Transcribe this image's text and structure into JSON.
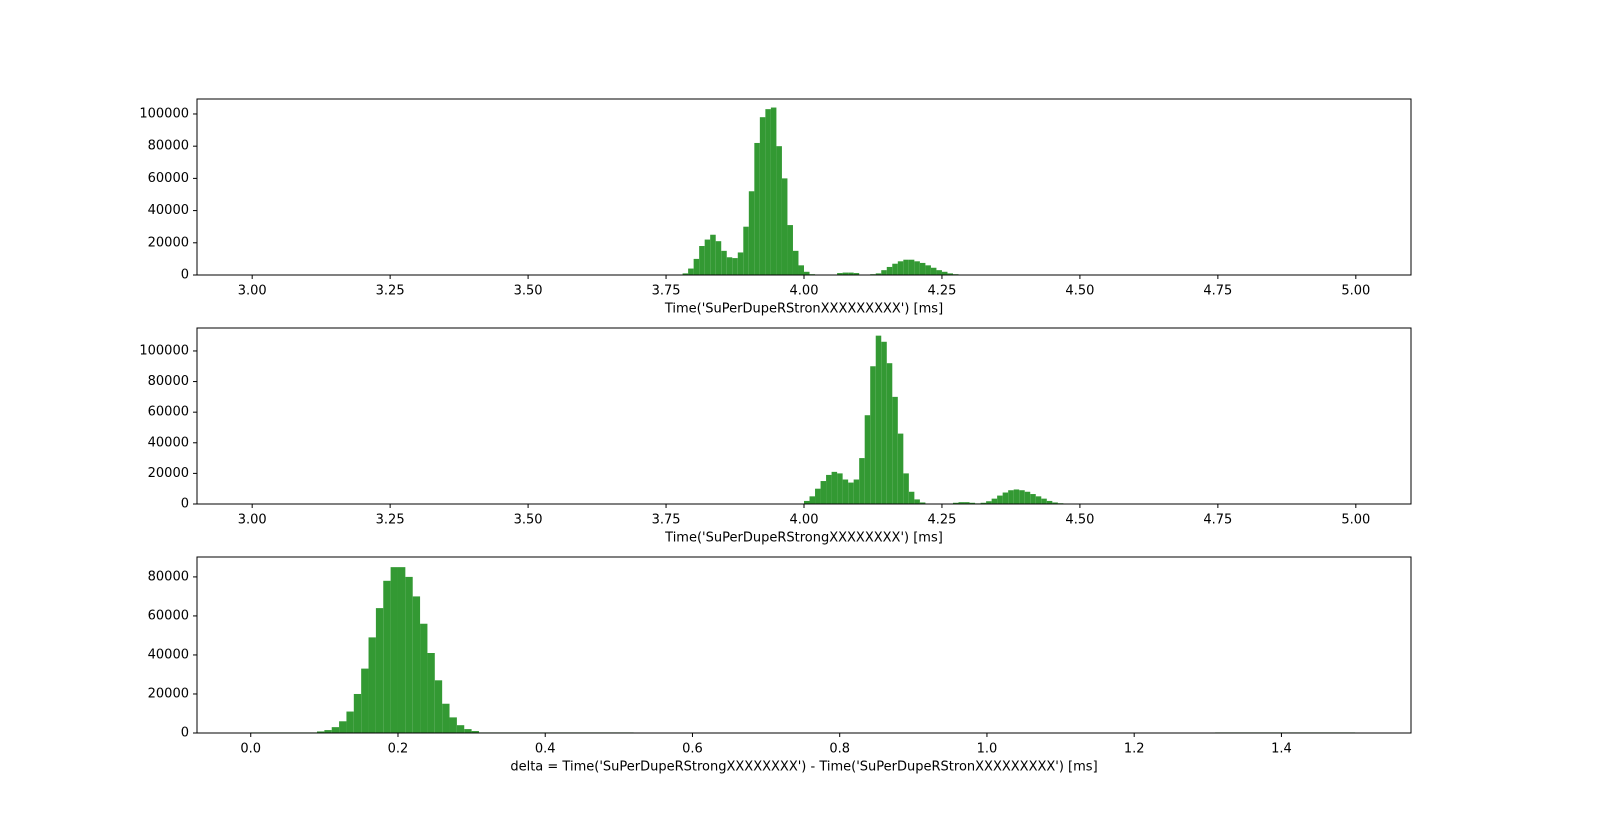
{
  "chart_data": [
    {
      "type": "histogram",
      "color": "#339933",
      "x_label": "Time('SuPerDupeRStronXXXXXXXXX') [ms]",
      "bins": [
        3.78,
        3.79,
        3.8,
        3.81,
        3.82,
        3.83,
        3.84,
        3.85,
        3.86,
        3.87,
        3.88,
        3.89,
        3.9,
        3.91,
        3.92,
        3.93,
        3.94,
        3.95,
        3.96,
        3.97,
        3.98,
        3.99,
        4.0,
        4.01,
        4.02,
        4.03,
        4.04,
        4.05,
        4.06,
        4.07,
        4.08,
        4.09,
        4.1,
        4.11,
        4.12,
        4.13,
        4.14,
        4.15,
        4.16,
        4.17,
        4.18,
        4.19,
        4.2,
        4.21,
        4.22,
        4.23,
        4.24,
        4.25,
        4.26,
        4.27,
        4.28,
        4.29,
        4.3
      ],
      "values": [
        1000,
        4000,
        10000,
        18000,
        22000,
        25000,
        21000,
        15000,
        11000,
        10500,
        14000,
        30000,
        52000,
        82000,
        98000,
        103000,
        104000,
        80000,
        60000,
        31000,
        15000,
        6000,
        2000,
        500,
        200,
        100,
        200,
        300,
        1200,
        1500,
        1500,
        1200,
        300,
        200,
        500,
        1000,
        3000,
        5000,
        7000,
        8500,
        9500,
        9500,
        8500,
        7500,
        6000,
        4500,
        3000,
        2000,
        1000,
        500,
        200,
        100
      ],
      "xlim": [
        2.9,
        5.1
      ],
      "ylim": [
        0,
        109300
      ],
      "xticks": [
        {
          "value": 3,
          "label": "3.00"
        },
        {
          "value": 3.25,
          "label": "3.25"
        },
        {
          "value": 3.5,
          "label": "3.50"
        },
        {
          "value": 3.75,
          "label": "3.75"
        },
        {
          "value": 4,
          "label": "4.00"
        },
        {
          "value": 4.25,
          "label": "4.25"
        },
        {
          "value": 4.5,
          "label": "4.50"
        },
        {
          "value": 4.75,
          "label": "4.75"
        },
        {
          "value": 5,
          "label": "5.00"
        }
      ],
      "yticks": [
        0,
        20000,
        40000,
        60000,
        80000,
        100000
      ]
    },
    {
      "type": "histogram",
      "color": "#339933",
      "x_label": "Time('SuPerDupeRStrongXXXXXXXX') [ms]",
      "bins": [
        4.0,
        4.01,
        4.02,
        4.03,
        4.04,
        4.05,
        4.06,
        4.07,
        4.08,
        4.09,
        4.1,
        4.11,
        4.12,
        4.13,
        4.14,
        4.15,
        4.16,
        4.17,
        4.18,
        4.19,
        4.2,
        4.21,
        4.22,
        4.23,
        4.24,
        4.25,
        4.26,
        4.27,
        4.28,
        4.29,
        4.3,
        4.31,
        4.32,
        4.33,
        4.34,
        4.35,
        4.36,
        4.37,
        4.38,
        4.39,
        4.4,
        4.41,
        4.42,
        4.43,
        4.44,
        4.45,
        4.46,
        4.47,
        4.48,
        4.49,
        4.5
      ],
      "values": [
        2000,
        5000,
        10000,
        15000,
        19000,
        21000,
        20000,
        16000,
        14000,
        16000,
        30000,
        58000,
        90000,
        110000,
        106000,
        92000,
        70000,
        46000,
        20000,
        8000,
        3000,
        1000,
        300,
        100,
        100,
        100,
        100,
        800,
        1200,
        1200,
        800,
        400,
        800,
        1800,
        3500,
        5500,
        7500,
        9000,
        9500,
        9000,
        8000,
        6500,
        5000,
        3500,
        2000,
        1000,
        500,
        200,
        100,
        50
      ],
      "xlim": [
        2.9,
        5.1
      ],
      "ylim": [
        0,
        115000
      ],
      "xticks": [
        {
          "value": 3,
          "label": "3.00"
        },
        {
          "value": 3.25,
          "label": "3.25"
        },
        {
          "value": 3.5,
          "label": "3.50"
        },
        {
          "value": 3.75,
          "label": "3.75"
        },
        {
          "value": 4,
          "label": "4.00"
        },
        {
          "value": 4.25,
          "label": "4.25"
        },
        {
          "value": 4.5,
          "label": "4.50"
        },
        {
          "value": 4.75,
          "label": "4.75"
        },
        {
          "value": 5,
          "label": "5.00"
        }
      ],
      "yticks": [
        0,
        20000,
        40000,
        60000,
        80000,
        100000
      ]
    },
    {
      "type": "histogram",
      "color": "#339933",
      "x_label": "delta = Time('SuPerDupeRStrongXXXXXXXX') - Time('SuPerDupeRStronXXXXXXXXX') [ms]",
      "bins": [
        0,
        0.09,
        0.1,
        0.11,
        0.12,
        0.13,
        0.14,
        0.15,
        0.16,
        0.17,
        0.18,
        0.19,
        0.2,
        0.21,
        0.22,
        0.23,
        0.24,
        0.25,
        0.26,
        0.27,
        0.28,
        0.29,
        0.3,
        0.31,
        0.52,
        1.31,
        1.5
      ],
      "values": [
        300,
        800,
        1500,
        3000,
        6000,
        11000,
        20000,
        33000,
        49000,
        64000,
        78000,
        85000,
        85000,
        80000,
        70000,
        56000,
        41000,
        27000,
        15000,
        8000,
        4000,
        2000,
        1000,
        300,
        0,
        300
      ],
      "xlim": [
        -0.073,
        1.576
      ],
      "ylim": [
        0,
        90200
      ],
      "xticks": [
        {
          "value": 0,
          "label": "0.0"
        },
        0.2,
        0.4,
        0.6,
        0.8,
        {
          "value": 1,
          "label": "1.0"
        },
        1.2,
        1.4
      ],
      "yticks": [
        0,
        20000,
        40000,
        60000,
        80000
      ]
    }
  ]
}
